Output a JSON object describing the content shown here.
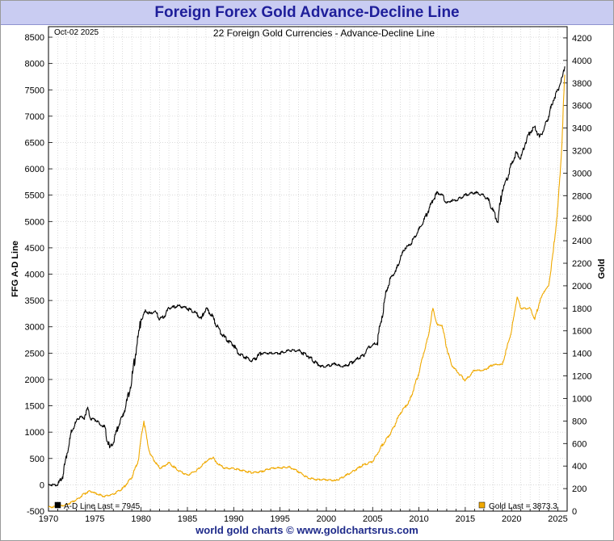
{
  "header": {
    "title": "Foreign Forex Gold Advance-Decline Line"
  },
  "footer": {
    "credit": "world gold charts © www.goldchartsrus.com"
  },
  "chart_data": {
    "type": "line",
    "title": "22 Foreign Gold Currencies - Advance-Decline Line",
    "date_stamp": "Oct-02  2025",
    "xlim": [
      1970,
      2026
    ],
    "x_ticks": [
      1970,
      1975,
      1980,
      1985,
      1990,
      1995,
      2000,
      2005,
      2010,
      2015,
      2020,
      2025
    ],
    "left_axis": {
      "label": "FFG A-D Line",
      "ylim": [
        -500,
        8700
      ],
      "ticks": [
        -500,
        0,
        500,
        1000,
        1500,
        2000,
        2500,
        3000,
        3500,
        4000,
        4500,
        5000,
        5500,
        6000,
        6500,
        7000,
        7500,
        8000,
        8500
      ]
    },
    "right_axis": {
      "label": "Gold",
      "ylim": [
        0,
        4300
      ],
      "ticks": [
        0,
        200,
        400,
        600,
        800,
        1000,
        1200,
        1400,
        1600,
        1800,
        2000,
        2200,
        2400,
        2600,
        2800,
        3000,
        3200,
        3400,
        3600,
        3800,
        4000,
        4200
      ]
    },
    "grid": true,
    "series": [
      {
        "name": "A-D Line",
        "axis": "left",
        "color": "#000000",
        "legend": "A-D Line Last = 7945",
        "x": [
          1970.0,
          1971.0,
          1971.5,
          1972.0,
          1972.5,
          1973.0,
          1973.4,
          1973.8,
          1974.2,
          1974.6,
          1975.0,
          1975.5,
          1976.0,
          1976.6,
          1977.0,
          1977.5,
          1978.0,
          1978.5,
          1979.0,
          1979.5,
          1980.0,
          1980.5,
          1981.0,
          1981.5,
          1982.0,
          1982.5,
          1983.0,
          1984.0,
          1985.0,
          1986.0,
          1986.5,
          1987.0,
          1987.7,
          1988.2,
          1989.0,
          1990.0,
          1990.5,
          1991.0,
          1992.0,
          1993.0,
          1994.0,
          1995.0,
          1996.0,
          1997.0,
          1998.0,
          1999.0,
          1999.5,
          2000.0,
          2001.0,
          2001.5,
          2002.0,
          2003.0,
          2004.0,
          2004.5,
          2005.0,
          2005.5,
          2006.0,
          2006.5,
          2007.0,
          2007.5,
          2008.0,
          2008.5,
          2009.0,
          2009.5,
          2010.0,
          2010.5,
          2011.0,
          2011.5,
          2012.0,
          2012.5,
          2013.0,
          2013.5,
          2014.0,
          2014.5,
          2015.0,
          2016.0,
          2017.0,
          2017.5,
          2018.0,
          2018.5,
          2019.0,
          2019.5,
          2020.0,
          2020.5,
          2021.0,
          2021.5,
          2022.0,
          2022.5,
          2023.0,
          2023.5,
          2024.0,
          2024.5,
          2025.0,
          2025.5,
          2025.75
        ],
        "y": [
          0,
          0,
          150,
          600,
          1000,
          1200,
          1300,
          1250,
          1450,
          1250,
          1250,
          1150,
          1100,
          700,
          800,
          1100,
          1300,
          1600,
          2000,
          2600,
          3150,
          3300,
          3250,
          3300,
          3150,
          3200,
          3350,
          3400,
          3350,
          3250,
          3150,
          3350,
          3200,
          3000,
          2800,
          2650,
          2500,
          2450,
          2350,
          2500,
          2500,
          2500,
          2550,
          2550,
          2450,
          2300,
          2250,
          2250,
          2300,
          2250,
          2250,
          2350,
          2450,
          2600,
          2650,
          2700,
          3200,
          3700,
          3950,
          4050,
          4300,
          4500,
          4550,
          4700,
          4850,
          5000,
          5200,
          5400,
          5550,
          5500,
          5350,
          5400,
          5400,
          5450,
          5500,
          5550,
          5500,
          5400,
          5200,
          5000,
          5600,
          5800,
          6100,
          6300,
          6200,
          6500,
          6700,
          6800,
          6600,
          6750,
          7000,
          7300,
          7500,
          7750,
          7945
        ]
      },
      {
        "name": "Gold",
        "axis": "right",
        "color": "#f0a900",
        "legend": "Gold  Last = 3873.3",
        "x": [
          1970.0,
          1971.0,
          1972.0,
          1973.0,
          1974.0,
          1974.5,
          1975.0,
          1976.0,
          1977.0,
          1978.0,
          1979.0,
          1979.7,
          1980.0,
          1980.3,
          1980.7,
          1981.0,
          1982.0,
          1982.5,
          1983.0,
          1984.0,
          1985.0,
          1986.0,
          1987.0,
          1987.8,
          1988.0,
          1989.0,
          1990.0,
          1991.0,
          1992.0,
          1993.0,
          1994.0,
          1995.0,
          1996.0,
          1997.0,
          1998.0,
          1999.0,
          2000.0,
          2001.0,
          2002.0,
          2003.0,
          2004.0,
          2005.0,
          2006.0,
          2007.0,
          2008.0,
          2009.0,
          2010.0,
          2010.5,
          2011.0,
          2011.5,
          2011.8,
          2012.0,
          2012.5,
          2013.0,
          2013.5,
          2014.0,
          2015.0,
          2016.0,
          2017.0,
          2018.0,
          2019.0,
          2019.5,
          2020.0,
          2020.6,
          2021.0,
          2022.0,
          2022.5,
          2023.0,
          2023.5,
          2024.0,
          2024.5,
          2025.0,
          2025.4,
          2025.75
        ],
        "y": [
          35,
          40,
          60,
          100,
          160,
          180,
          160,
          130,
          150,
          200,
          300,
          450,
          650,
          800,
          600,
          500,
          380,
          400,
          430,
          360,
          320,
          360,
          440,
          480,
          440,
          380,
          380,
          360,
          340,
          350,
          380,
          385,
          390,
          350,
          295,
          280,
          280,
          270,
          310,
          360,
          410,
          440,
          580,
          700,
          870,
          980,
          1230,
          1400,
          1550,
          1800,
          1700,
          1650,
          1650,
          1450,
          1300,
          1250,
          1160,
          1250,
          1250,
          1300,
          1300,
          1450,
          1600,
          1900,
          1800,
          1800,
          1700,
          1850,
          1950,
          2000,
          2300,
          2700,
          3200,
          3873.3
        ]
      }
    ]
  }
}
